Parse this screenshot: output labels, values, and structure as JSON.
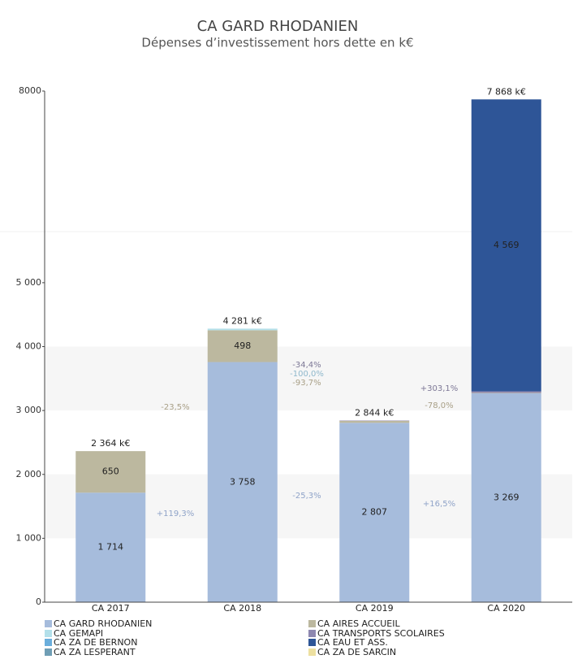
{
  "chart_data": {
    "type": "stacked-bar",
    "title": "CA GARD RHODANIEN",
    "subtitle": "Dépenses d’investissement hors dette en k€",
    "categories": [
      "CA 2017",
      "CA 2018",
      "CA 2019",
      "CA 2020"
    ],
    "ylim": [
      0,
      8000
    ],
    "yticks": [
      0,
      {
        "value": 1000,
        "label": "1 000"
      },
      {
        "value": 2000,
        "label": "2 000"
      },
      {
        "value": 3000,
        "label": "3 000"
      },
      {
        "value": 4000,
        "label": "4 000"
      },
      {
        "value": 5000,
        "label": "5 000"
      },
      8000
    ],
    "series": [
      {
        "name": "CA GARD RHODANIEN",
        "color": "#a6bcdc",
        "values": [
          1714,
          3758,
          2807,
          3269
        ],
        "value_labels": [
          "1 714",
          "3 758",
          "2 807",
          "3 269"
        ]
      },
      {
        "name": "CA AIRES ACCUEIL",
        "color": "#bcb89f",
        "values": [
          650,
          498,
          31,
          7
        ],
        "value_labels": [
          "650",
          "498",
          null,
          null
        ]
      },
      {
        "name": "CA GEMAPI",
        "color": "#b3e0ea",
        "values": [
          0,
          25,
          0,
          0
        ]
      },
      {
        "name": "CA TRANSPORTS SCOLAIRES",
        "color": "#8e88b0",
        "values": [
          0,
          0,
          6,
          24
        ]
      },
      {
        "name": "CA ZA DE BERNON",
        "color": "#6aaedc",
        "values": [
          0,
          0,
          0,
          0
        ]
      },
      {
        "name": "CA ZA DE SARCIN",
        "color": "#ede0a0",
        "values": [
          0,
          0,
          0,
          0
        ]
      },
      {
        "name": "CA ZA LESPERANT",
        "color": "#6f9eb5",
        "values": [
          0,
          0,
          0,
          0
        ]
      },
      {
        "name": "CA EAU ET ASS.",
        "color": "#2e5597",
        "values": [
          0,
          0,
          0,
          4569
        ],
        "value_labels": [
          null,
          null,
          null,
          "4 569"
        ]
      }
    ],
    "totals": {
      "values": [
        2364,
        4281,
        2844,
        7868
      ],
      "value_labels": [
        "2 364 k€",
        "4 281 k€",
        "2 844 k€",
        "7 868 k€"
      ]
    },
    "annotations": [
      {
        "text": "-23,5%",
        "color": "#a89f86"
      },
      {
        "text": "+119,3%",
        "color": "#8fa3c8"
      },
      {
        "text": "-34,4%",
        "color": "#7d7896"
      },
      {
        "text": "-100,0%",
        "color": "#8fb8cc"
      },
      {
        "text": "-93,7%",
        "color": "#a89f86"
      },
      {
        "text": "-25,3%",
        "color": "#8fa3c8"
      },
      {
        "text": "+303,1%",
        "color": "#7d7896"
      },
      {
        "text": "-78,0%",
        "color": "#a89f86"
      },
      {
        "text": "+16,5%",
        "color": "#8fa3c8"
      }
    ]
  }
}
